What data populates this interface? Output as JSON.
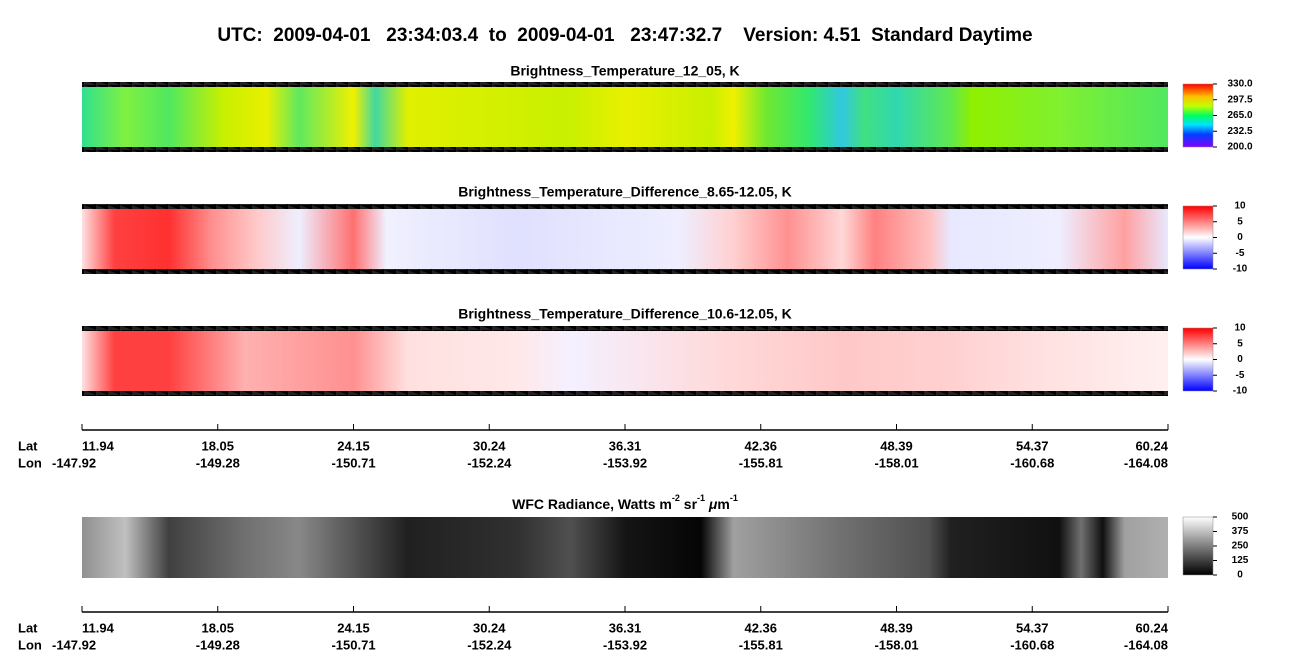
{
  "header": {
    "title": "UTC:  2009-04-01   23:34:03.4  to  2009-04-01   23:47:32.7    Version: 4.51  Standard Daytime"
  },
  "panels": [
    {
      "title": "Brightness_Temperature_12_05, K",
      "colorbar": [
        "330.0",
        "297.5",
        "265.0",
        "232.5",
        "200.0"
      ]
    },
    {
      "title": "Brightness_Temperature_Difference_8.65-12.05, K",
      "colorbar": [
        "10",
        "5",
        "0",
        "-5",
        "-10"
      ]
    },
    {
      "title": "Brightness_Temperature_Difference_10.6-12.05, K",
      "colorbar": [
        "10",
        "5",
        "0",
        "-5",
        "-10"
      ]
    },
    {
      "title": [
        {
          "t": "WFC Radiance, Watts m"
        },
        {
          "sup": "-2"
        },
        {
          "t": " sr"
        },
        {
          "sup": "-1"
        },
        {
          "t": " "
        },
        {
          "it": "μ"
        },
        {
          "t": "m"
        },
        {
          "sup": "-1"
        }
      ],
      "colorbar": [
        "500",
        "375",
        "250",
        "125",
        "0"
      ]
    }
  ],
  "axis": {
    "lat_label": "Lat",
    "lon_label": "Lon",
    "lat": [
      "11.94",
      "18.05",
      "24.15",
      "30.24",
      "36.31",
      "42.36",
      "48.39",
      "54.37",
      "60.24"
    ],
    "lon": [
      "-147.92",
      "-149.28",
      "-150.71",
      "-152.24",
      "-153.92",
      "-155.81",
      "-158.01",
      "-160.68",
      "-164.08"
    ]
  }
}
